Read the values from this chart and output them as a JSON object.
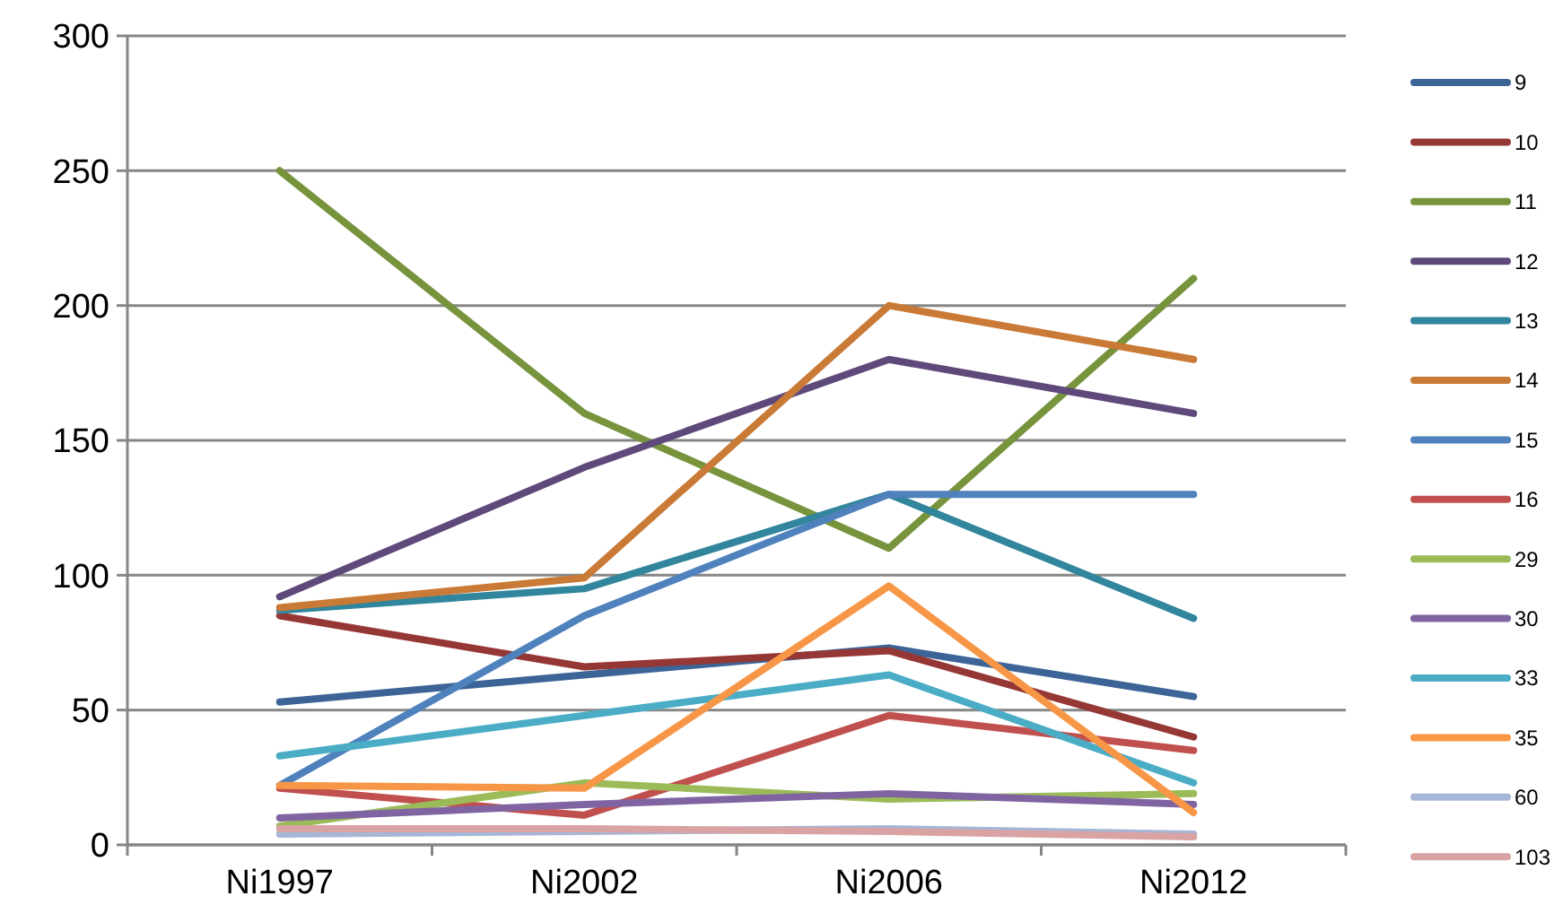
{
  "chart_data": {
    "type": "line",
    "categories": [
      "Ni1997",
      "Ni2002",
      "Ni2006",
      "Ni2012"
    ],
    "ylim": [
      0,
      300
    ],
    "yticks": [
      0,
      50,
      100,
      150,
      200,
      250,
      300
    ],
    "grid": "y",
    "legend": "right",
    "marker": "none",
    "line_style": "solid",
    "series": [
      {
        "name": "9",
        "color": "#3c6496",
        "values": [
          53,
          63,
          73,
          55
        ]
      },
      {
        "name": "10",
        "color": "#953735",
        "values": [
          85,
          66,
          72,
          40
        ]
      },
      {
        "name": "11",
        "color": "#77933c",
        "values": [
          250,
          160,
          110,
          210
        ]
      },
      {
        "name": "12",
        "color": "#5f497a",
        "values": [
          92,
          140,
          180,
          160
        ]
      },
      {
        "name": "13",
        "color": "#31859c",
        "values": [
          87,
          95,
          130,
          84
        ]
      },
      {
        "name": "14",
        "color": "#c97a36",
        "values": [
          88,
          99,
          200,
          180
        ]
      },
      {
        "name": "15",
        "color": "#4f81bd",
        "values": [
          22,
          85,
          130,
          130
        ]
      },
      {
        "name": "16",
        "color": "#c0504d",
        "values": [
          21,
          11,
          48,
          35
        ]
      },
      {
        "name": "29",
        "color": "#9bbb59",
        "values": [
          7,
          23,
          17,
          19
        ]
      },
      {
        "name": "30",
        "color": "#8064a2",
        "values": [
          10,
          15,
          19,
          15
        ]
      },
      {
        "name": "33",
        "color": "#4bacc6",
        "values": [
          33,
          48,
          63,
          23
        ]
      },
      {
        "name": "35",
        "color": "#f79646",
        "values": [
          22,
          21,
          96,
          12
        ]
      },
      {
        "name": "60",
        "color": "#a5b6d6",
        "values": [
          4,
          5,
          6,
          4
        ]
      },
      {
        "name": "103",
        "color": "#d9a3a3",
        "values": [
          6,
          6,
          5,
          3
        ]
      }
    ]
  }
}
